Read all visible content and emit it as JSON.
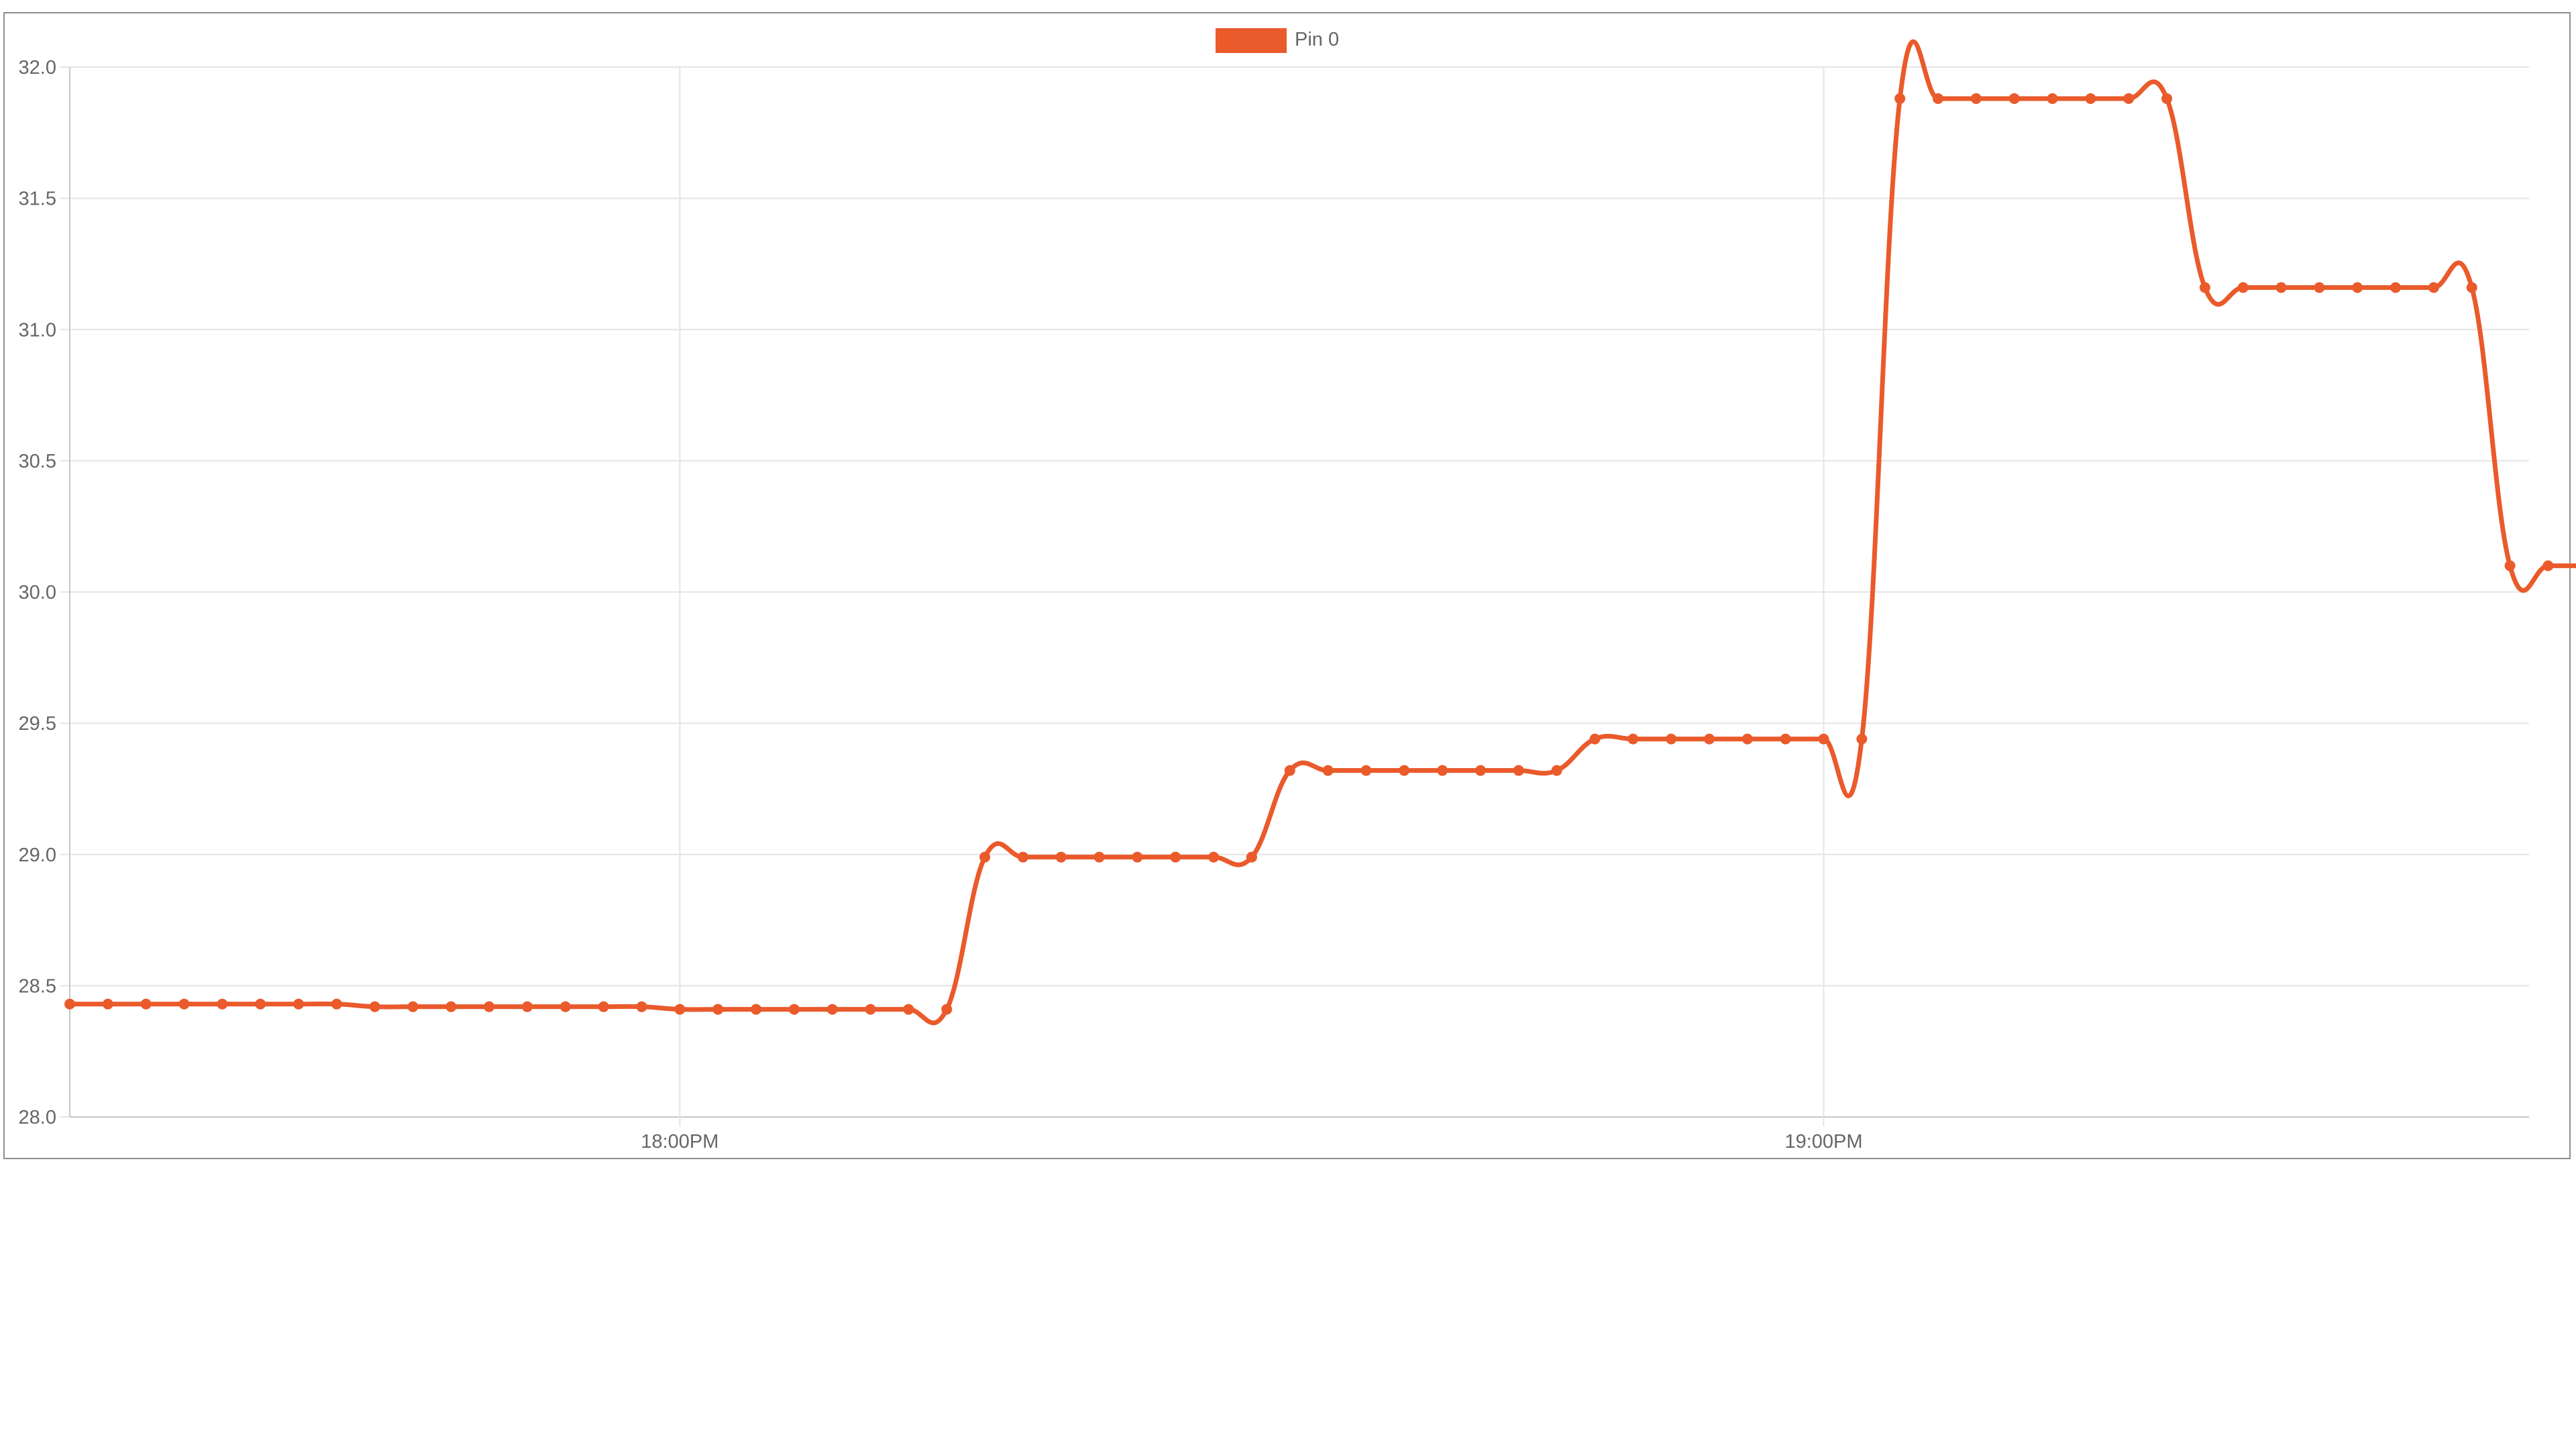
{
  "chart_data": {
    "type": "line",
    "title": "",
    "xlabel": "",
    "ylabel": "",
    "ylim": [
      28.0,
      32.0
    ],
    "y_ticks": [
      "28.0",
      "28.5",
      "29.0",
      "29.5",
      "30.0",
      "30.5",
      "31.0",
      "31.5",
      "32.0"
    ],
    "x_range": [
      "17:28",
      "19:37"
    ],
    "x_ticks": [
      {
        "time": "18:00",
        "label": "18:00PM"
      },
      {
        "time": "19:00",
        "label": "19:00PM"
      }
    ],
    "x_interval_minutes": 2,
    "grid": true,
    "legend": "top-center",
    "series": [
      {
        "name": "Pin 0",
        "color": "#ea5a2b",
        "values": [
          28.43,
          28.43,
          28.43,
          28.43,
          28.43,
          28.43,
          28.43,
          28.43,
          28.42,
          28.42,
          28.42,
          28.42,
          28.42,
          28.42,
          28.42,
          28.42,
          28.41,
          28.41,
          28.41,
          28.41,
          28.41,
          28.41,
          28.41,
          28.41,
          28.99,
          28.99,
          28.99,
          28.99,
          28.99,
          28.99,
          28.99,
          28.99,
          29.32,
          29.32,
          29.32,
          29.32,
          29.32,
          29.32,
          29.32,
          29.32,
          29.44,
          29.44,
          29.44,
          29.44,
          29.44,
          29.44,
          29.44,
          29.44,
          31.88,
          31.88,
          31.88,
          31.88,
          31.88,
          31.88,
          31.88,
          31.88,
          31.16,
          31.16,
          31.16,
          31.16,
          31.16,
          31.16,
          31.16,
          31.16,
          30.1,
          30.1,
          30.1,
          30.1,
          30.1,
          30.1
        ]
      }
    ]
  }
}
